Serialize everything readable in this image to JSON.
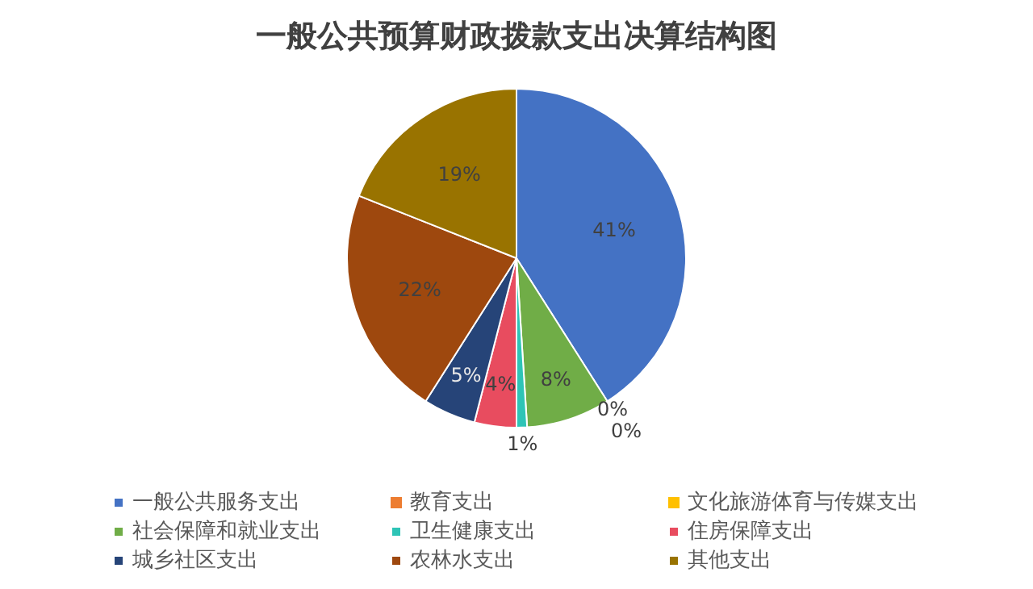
{
  "chart_data": {
    "type": "pie",
    "title": "一般公共预算财政拨款支出决算结构图",
    "categories": [
      "一般公共服务支出",
      "教育支出",
      "文化旅游体育与传媒支出",
      "社会保障和就业支出",
      "卫生健康支出",
      "住房保障支出",
      "城乡社区支出",
      "农林水支出",
      "其他支出"
    ],
    "values": [
      41,
      0,
      0,
      8,
      1,
      4,
      5,
      22,
      19
    ],
    "value_labels": [
      "41%",
      "0%",
      "0%",
      "8%",
      "1%",
      "4%",
      "5%",
      "22%",
      "19%"
    ],
    "colors": [
      "#4472c4",
      "#ed7d31",
      "#ffc000",
      "#70ad47",
      "#2ec4b6",
      "#e84c5f",
      "#264478",
      "#9e480e",
      "#997300"
    ],
    "legend": "bottom"
  }
}
